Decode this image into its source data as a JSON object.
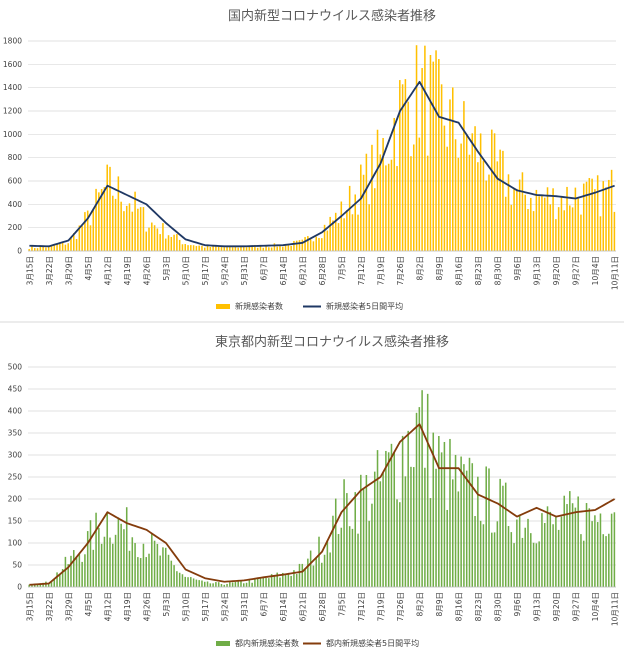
{
  "chart_data": [
    {
      "type": "bar",
      "title": "国内新型コロナウイルス感染者推移",
      "xlabel": "",
      "ylabel": "",
      "ylim": [
        0,
        1800
      ],
      "yticks": [
        "0",
        "200",
        "400",
        "600",
        "800",
        "1000",
        "1200",
        "1400",
        "1600",
        "1800"
      ],
      "grid": true,
      "legend_position": "bottom",
      "x_tick_labels": [
        "3月15日",
        "3月22日",
        "3月29日",
        "4月5日",
        "4月12日",
        "4月19日",
        "4月26日",
        "5月3日",
        "5月10日",
        "5月17日",
        "5月24日",
        "5月31日",
        "6月7日",
        "6月14日",
        "6月21日",
        "6月28日",
        "7月5日",
        "7月12日",
        "7月19日",
        "7月26日",
        "8月2日",
        "8月9日",
        "8月16日",
        "8月23日",
        "8月30日",
        "9月6日",
        "9月13日",
        "9月20日",
        "9月27日",
        "10月4日",
        "10月11日"
      ],
      "series": [
        {
          "name": "新規感染者数",
          "kind": "bar",
          "color": "#FFC000",
          "weekly_values": [
            30,
            40,
            80,
            300,
            600,
            500,
            280,
            180,
            70,
            40,
            35,
            40,
            45,
            55,
            80,
            200,
            350,
            600,
            850,
            1300,
            1500,
            1300,
            1100,
            950,
            750,
            550,
            500,
            480,
            520,
            500,
            580
          ]
        },
        {
          "name": "新規感染者5日間平均",
          "kind": "line",
          "color": "#1F3864",
          "weekly_values": [
            45,
            40,
            90,
            280,
            560,
            480,
            400,
            240,
            100,
            50,
            40,
            40,
            45,
            50,
            70,
            160,
            300,
            450,
            750,
            1200,
            1450,
            1150,
            1100,
            850,
            620,
            520,
            480,
            470,
            450,
            500,
            560
          ]
        }
      ]
    },
    {
      "type": "bar",
      "title": "東京都内新型コロナウイルス感染者推移",
      "xlabel": "",
      "ylabel": "",
      "ylim": [
        0,
        500
      ],
      "yticks": [
        "0",
        "50",
        "100",
        "150",
        "200",
        "250",
        "300",
        "350",
        "400",
        "450",
        "500"
      ],
      "grid": true,
      "legend_position": "bottom",
      "x_tick_labels": [
        "3月15日",
        "3月22日",
        "3月29日",
        "4月5日",
        "4月12日",
        "4月19日",
        "4月26日",
        "5月3日",
        "5月10日",
        "5月17日",
        "5月24日",
        "5月31日",
        "6月7日",
        "6月14日",
        "6月21日",
        "6月28日",
        "7月5日",
        "7月12日",
        "7月19日",
        "7月26日",
        "8月2日",
        "8月9日",
        "8月16日",
        "8月23日",
        "8月30日",
        "9月6日",
        "9月13日",
        "9月20日",
        "9月27日",
        "10月4日",
        "10月11日"
      ],
      "series": [
        {
          "name": "都内新規感染者数",
          "kind": "bar",
          "color": "#70AD47",
          "weekly_values": [
            8,
            10,
            60,
            110,
            170,
            140,
            110,
            70,
            25,
            10,
            8,
            12,
            20,
            30,
            45,
            100,
            190,
            220,
            250,
            330,
            400,
            300,
            250,
            230,
            200,
            170,
            170,
            150,
            180,
            170,
            210
          ]
        },
        {
          "name": "都内新規感染者5日間平均",
          "kind": "line",
          "color": "#843C0C",
          "weekly_values": [
            5,
            8,
            45,
            100,
            170,
            145,
            130,
            100,
            40,
            20,
            12,
            15,
            22,
            28,
            35,
            80,
            170,
            220,
            250,
            330,
            370,
            270,
            270,
            210,
            190,
            160,
            180,
            160,
            170,
            175,
            200
          ]
        }
      ]
    }
  ]
}
